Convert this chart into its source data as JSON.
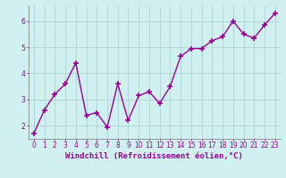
{
  "x": [
    0,
    1,
    2,
    3,
    4,
    5,
    6,
    7,
    8,
    9,
    10,
    11,
    12,
    13,
    14,
    15,
    16,
    17,
    18,
    19,
    20,
    21,
    22,
    23
  ],
  "y": [
    1.7,
    2.6,
    3.2,
    3.6,
    4.4,
    2.4,
    2.5,
    1.95,
    3.6,
    2.2,
    3.15,
    3.3,
    2.85,
    3.5,
    4.65,
    4.95,
    4.95,
    5.25,
    5.4,
    6.0,
    5.5,
    5.35,
    5.85,
    6.3
  ],
  "line_color": "#990099",
  "marker": "+",
  "markersize": 4,
  "linewidth": 1.0,
  "bg_color": "#cff0ee",
  "grid_color": "#b0d8d8",
  "xlabel": "Windchill (Refroidissement éolien,°C)",
  "xlabel_fontsize": 6.5,
  "tick_fontsize": 5.5,
  "ylim": [
    1.5,
    6.6
  ],
  "yticks": [
    2,
    3,
    4,
    5,
    6
  ],
  "xtick_labels": [
    "0",
    "1",
    "2",
    "3",
    "4",
    "5",
    "6",
    "7",
    "8",
    "9",
    "10",
    "11",
    "12",
    "13",
    "14",
    "15",
    "16",
    "17",
    "18",
    "19",
    "20",
    "21",
    "22",
    "23"
  ]
}
